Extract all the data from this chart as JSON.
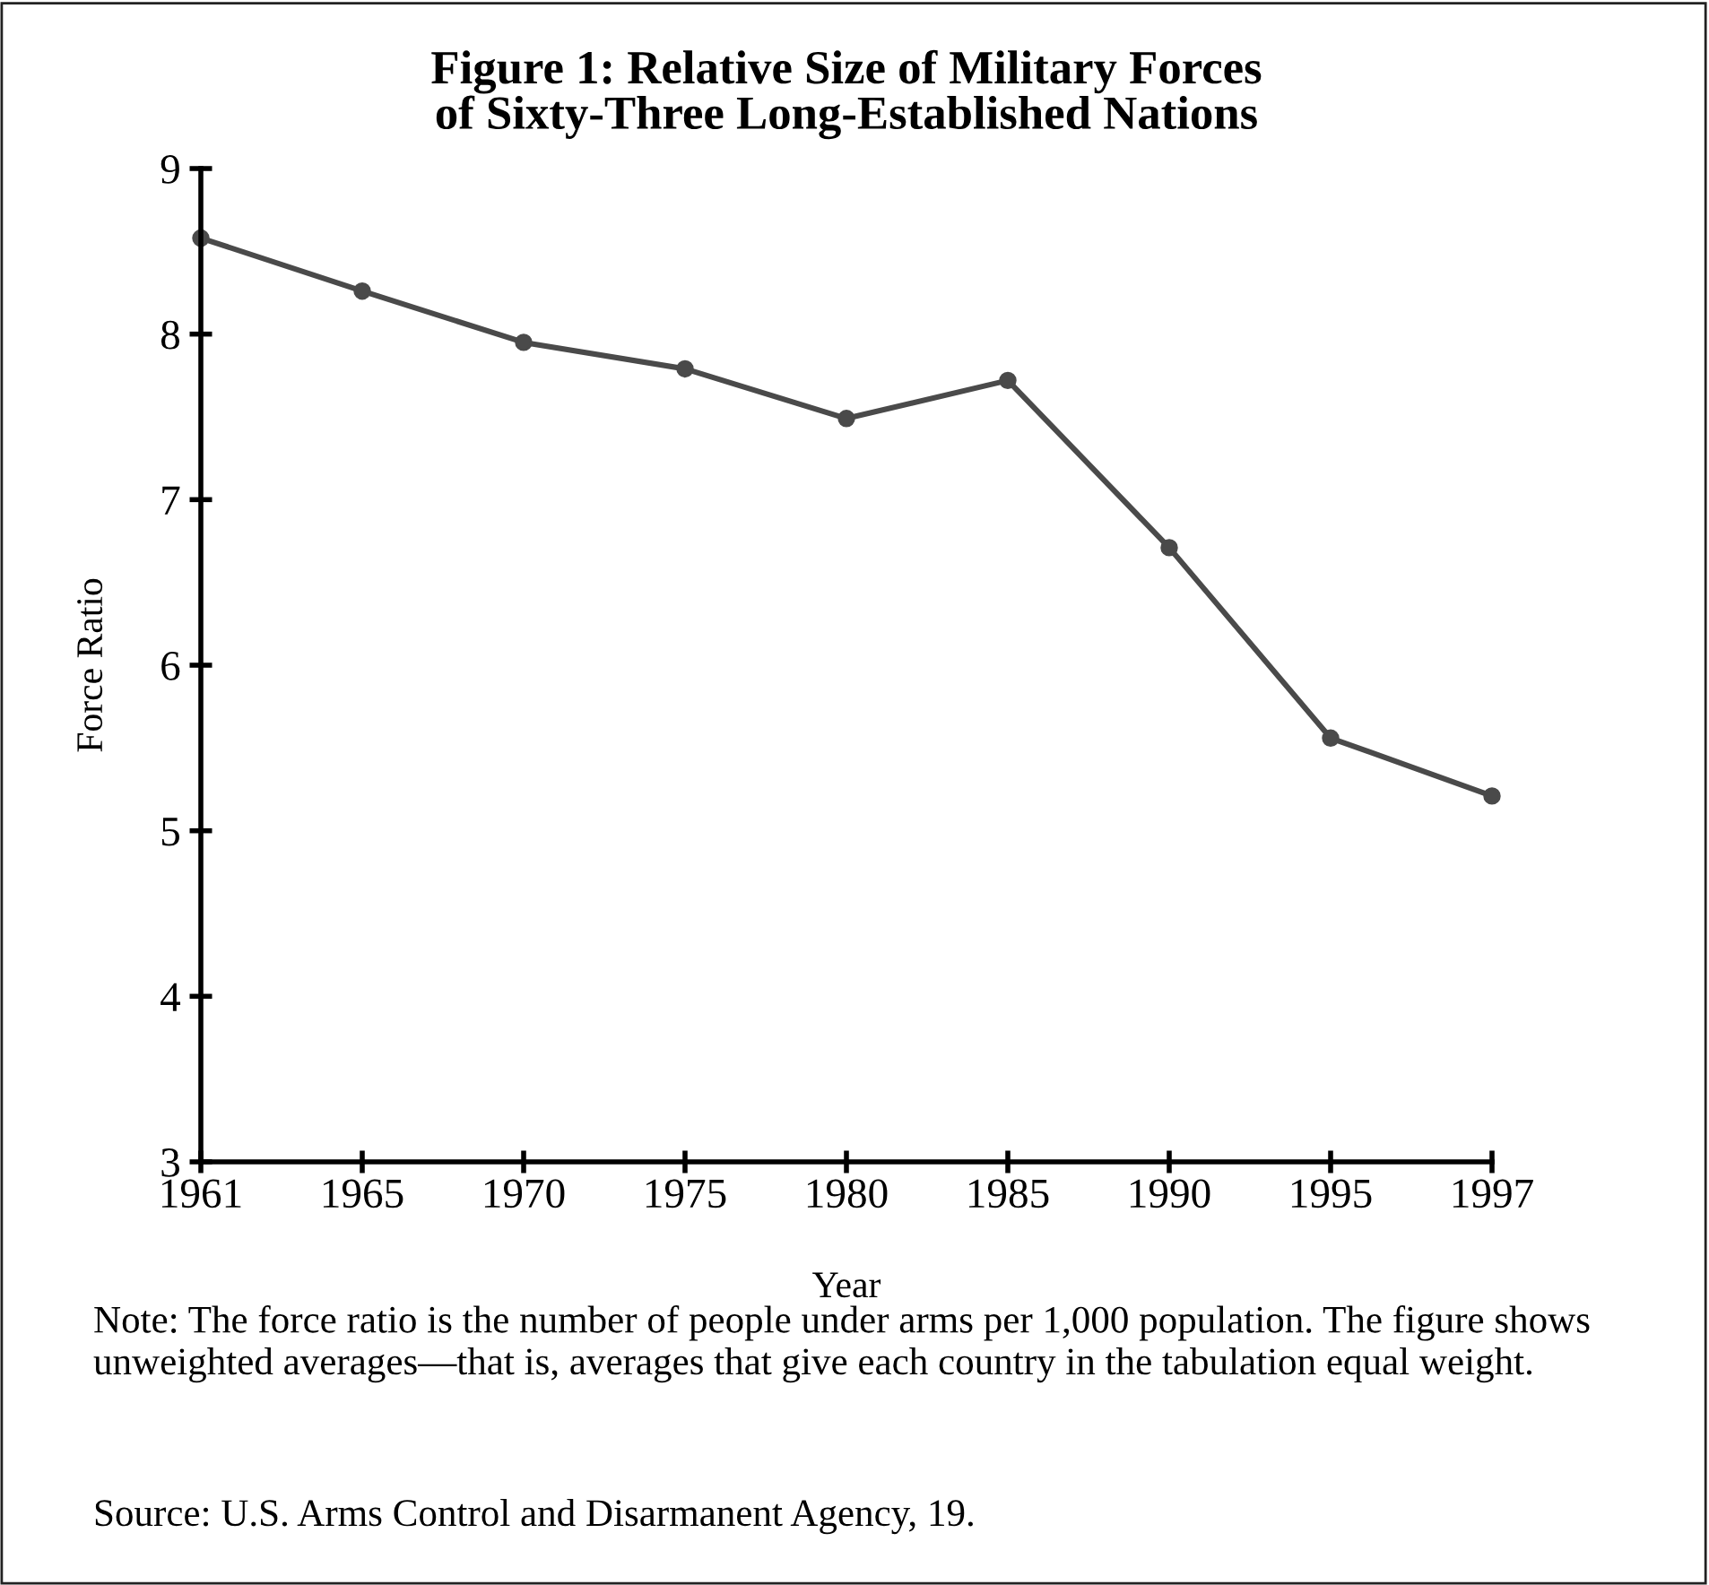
{
  "chart_data": {
    "type": "line",
    "title": "Figure 1: Relative Size of Military Forces\nof Sixty-Three Long-Established Nations",
    "xlabel": "Year",
    "ylabel": "Force Ratio",
    "categories": [
      "1961",
      "1965",
      "1970",
      "1975",
      "1980",
      "1985",
      "1990",
      "1995",
      "1997"
    ],
    "series": [
      {
        "color": "#4a4a4a",
        "values": [
          8.58,
          8.26,
          7.95,
          7.79,
          7.49,
          7.72,
          6.71,
          5.56,
          5.21
        ]
      }
    ],
    "ylim": [
      3,
      9
    ],
    "yticks": [
      3,
      4,
      5,
      6,
      7,
      8,
      9
    ],
    "marker": "circle",
    "line_style": "solid",
    "grid": false,
    "legend": false,
    "annotations": [
      "Note: The force ratio is the number of people under arms per 1,000 population. The figure shows unweighted averages—that is, averages that give each country in the tabulation equal weight.",
      "Source: U.S. Arms Control and Disarmanent Agency, 19."
    ]
  }
}
